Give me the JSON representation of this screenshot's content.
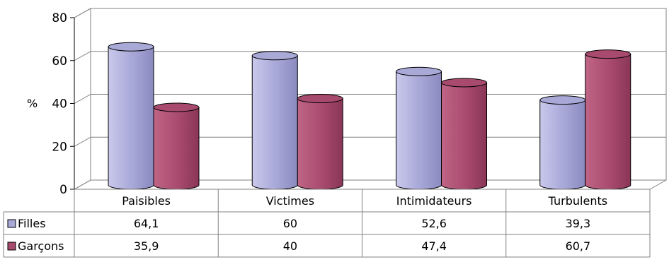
{
  "chart_data": {
    "type": "bar",
    "title": "",
    "ylabel": "%",
    "xlabel": "",
    "ylim": [
      0,
      80
    ],
    "yticks": [
      0,
      20,
      40,
      60,
      80
    ],
    "grid": true,
    "categories": [
      "Paisibles",
      "Victimes",
      "Intimidateurs",
      "Turbulents"
    ],
    "series": [
      {
        "name": "Filles",
        "values": [
          64.1,
          60,
          52.6,
          39.3
        ],
        "color": "#a9a9d8",
        "display": [
          "64,1",
          "60",
          "52,6",
          "39,3"
        ]
      },
      {
        "name": "Garçons",
        "values": [
          35.9,
          40,
          47.4,
          60.7
        ],
        "color": "#a84a6e",
        "display": [
          "35,9",
          "40",
          "47,4",
          "60,7"
        ]
      }
    ],
    "data_table": true
  }
}
